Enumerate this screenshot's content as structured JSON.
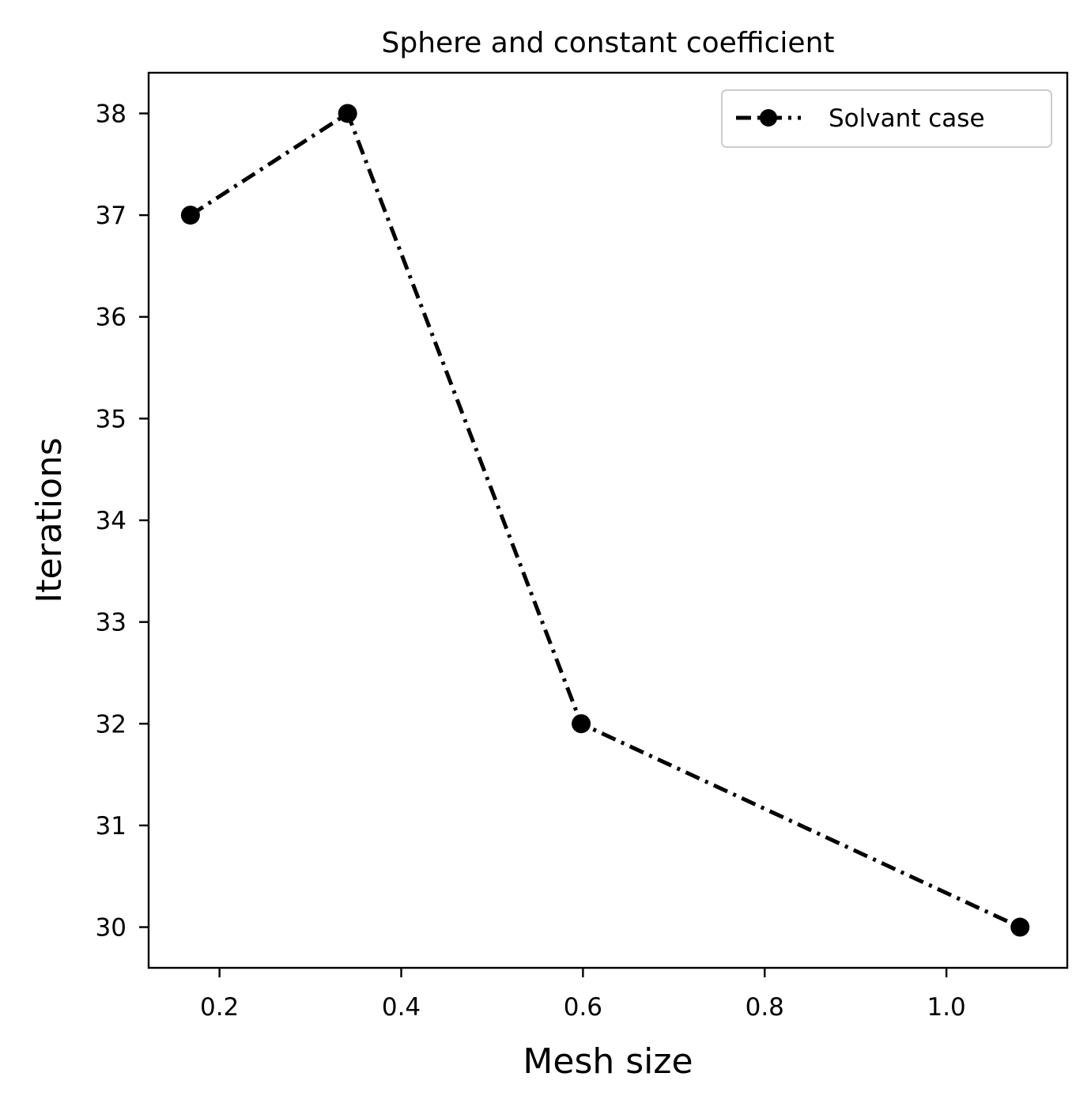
{
  "chart_data": {
    "type": "line",
    "title": "Sphere and constant coefficient",
    "xlabel": "Mesh size",
    "ylabel": "Iterations",
    "xlim": [
      0.122,
      1.133
    ],
    "ylim": [
      29.6,
      38.4
    ],
    "xticks": [
      0.2,
      0.4,
      0.6,
      0.8,
      1.0
    ],
    "xtick_labels": [
      "0.2",
      "0.4",
      "0.6",
      "0.8",
      "1.0"
    ],
    "yticks": [
      30,
      31,
      32,
      33,
      34,
      35,
      36,
      37,
      38
    ],
    "ytick_labels": [
      "30",
      "31",
      "32",
      "33",
      "34",
      "35",
      "36",
      "37",
      "38"
    ],
    "grid": false,
    "legend_position": "top-right",
    "series": [
      {
        "name": "Solvant case",
        "x": [
          0.168,
          0.341,
          0.598,
          1.081
        ],
        "y": [
          37,
          38,
          32,
          30
        ],
        "color": "#000000",
        "line_style": "dash-dot",
        "marker": "circle"
      }
    ]
  }
}
